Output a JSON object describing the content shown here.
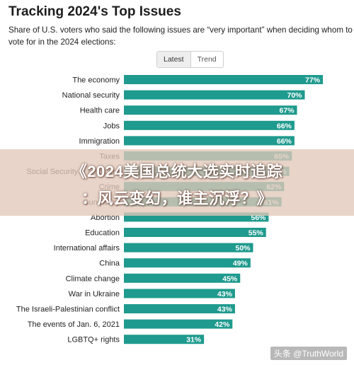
{
  "header": {
    "title": "Tracking 2024's Top Issues",
    "subtitle": "Share of U.S. voters who said the following issues are “very important” when deciding whom to vote for in the 2024 elections:"
  },
  "tabs": [
    {
      "label": "Latest",
      "active": true
    },
    {
      "label": "Trend",
      "active": false
    }
  ],
  "overlay": {
    "line1": "《2024美国总统大选实时追踪",
    "line2": "：风云变幻，谁主沉浮？》"
  },
  "watermark": "头条 @TruthWorld",
  "colors": {
    "bar": "#1f9a8e",
    "banner": "#e1c8b9"
  },
  "chart_data": {
    "type": "bar",
    "orientation": "horizontal",
    "unit": "%",
    "xlim": [
      0,
      100
    ],
    "grid": false,
    "categories": [
      "The economy",
      "National security",
      "Health care",
      "Jobs",
      "Immigration",
      "Taxes",
      "Social Security & Medicare",
      "Crime",
      "Gun policy",
      "Abortion",
      "Education",
      "International affairs",
      "China",
      "Climate change",
      "War in Ukraine",
      "The Israeli-Palestinian conflict",
      "The events of Jan. 6, 2021",
      "LGBTQ+ rights"
    ],
    "values": [
      77,
      70,
      67,
      66,
      66,
      65,
      64,
      62,
      61,
      56,
      55,
      50,
      49,
      45,
      43,
      43,
      42,
      31
    ],
    "value_labels": [
      "77%",
      "70%",
      "67%",
      "66%",
      "66%",
      "65%",
      "64%",
      "62%",
      "61%",
      "56%",
      "55%",
      "50%",
      "49%",
      "45%",
      "43%",
      "43%",
      "42%",
      "31%"
    ]
  }
}
